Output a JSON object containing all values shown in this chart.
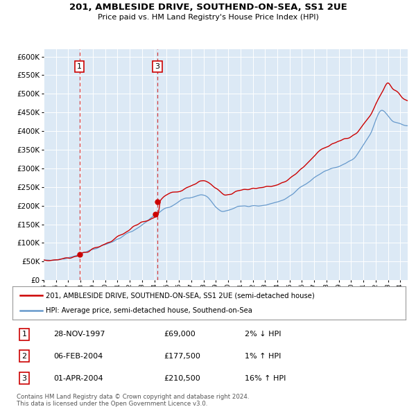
{
  "title": "201, AMBLESIDE DRIVE, SOUTHEND-ON-SEA, SS1 2UE",
  "subtitle": "Price paid vs. HM Land Registry's House Price Index (HPI)",
  "bg_color": "#dce9f5",
  "red_line_color": "#cc0000",
  "blue_line_color": "#6699cc",
  "red_line_label": "201, AMBLESIDE DRIVE, SOUTHEND-ON-SEA, SS1 2UE (semi-detached house)",
  "blue_line_label": "HPI: Average price, semi-detached house, Southend-on-Sea",
  "marker_years": [
    1997.91,
    2004.1,
    2004.25
  ],
  "marker_prices": [
    69000,
    177500,
    210500
  ],
  "marker_nums": [
    1,
    2,
    3
  ],
  "vline_years": [
    1997.91,
    2004.25
  ],
  "vline_nums": [
    1,
    3
  ],
  "footer": "Contains HM Land Registry data © Crown copyright and database right 2024.\nThis data is licensed under the Open Government Licence v3.0.",
  "ylim": [
    0,
    620000
  ],
  "xlim_start": 1995.0,
  "xlim_end": 2024.6,
  "yticks": [
    0,
    50000,
    100000,
    150000,
    200000,
    250000,
    300000,
    350000,
    400000,
    450000,
    500000,
    550000,
    600000
  ],
  "row_data": [
    [
      "1",
      "28-NOV-1997",
      "£69,000",
      "2% ↓ HPI"
    ],
    [
      "2",
      "06-FEB-2004",
      "£177,500",
      "1% ↑ HPI"
    ],
    [
      "3",
      "01-APR-2004",
      "£210,500",
      "16% ↑ HPI"
    ]
  ]
}
